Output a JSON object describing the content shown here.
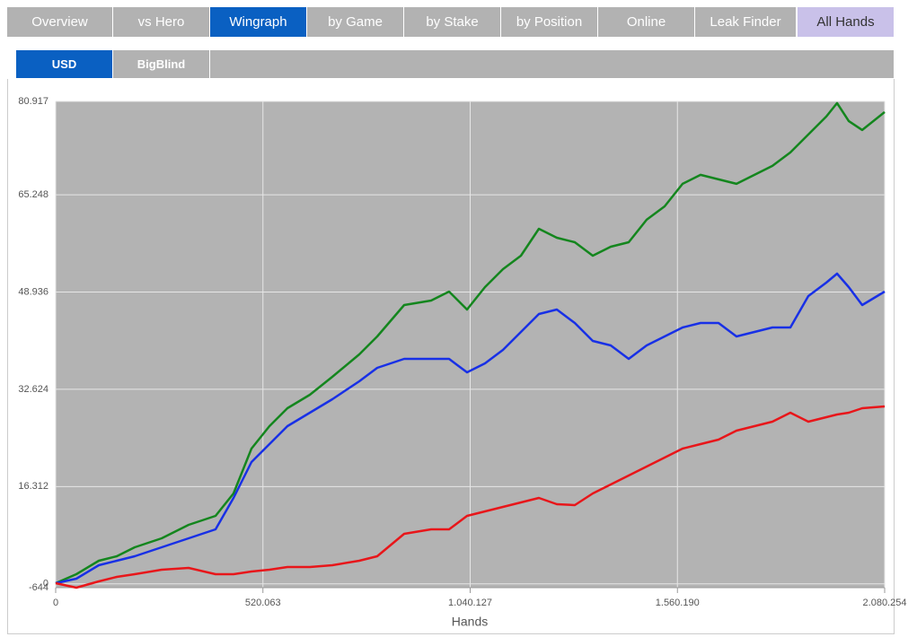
{
  "tabs": [
    "Overview",
    "vs Hero",
    "Wingraph",
    "by Game",
    "by Stake",
    "by Position",
    "Online",
    "Leak Finder",
    "All Hands"
  ],
  "subtabs": [
    "USD",
    "BigBlind"
  ],
  "chart_data": {
    "type": "line",
    "x_label": "Hands",
    "x": [
      0,
      51837,
      108182,
      153258,
      198334,
      265948,
      333561,
      401176,
      446252,
      491328,
      536404,
      581480,
      637825,
      694169,
      761784,
      806860,
      874474,
      942088,
      987164,
      1032240,
      1077316,
      1122392,
      1167468,
      1212544,
      1257620,
      1302696,
      1347772,
      1392848,
      1437924,
      1483000,
      1528076,
      1573152,
      1618228,
      1663304,
      1708380,
      1753456,
      1798532,
      1843608,
      1888684,
      1933760,
      1960805,
      1990104,
      2023911,
      2080254
    ],
    "series": [
      {
        "color": "#14861e",
        "values": [
          109,
          1614,
          3871,
          4624,
          6129,
          7634,
          9891,
          11396,
          15158,
          22683,
          26446,
          29456,
          31713,
          34723,
          38486,
          41496,
          46763,
          47516,
          49021,
          46011,
          49773,
          52783,
          55041,
          59556,
          58051,
          57298,
          55041,
          56546,
          57298,
          61061,
          63318,
          67081,
          68586,
          67833,
          67081,
          68586,
          70091,
          72348,
          75358,
          78368,
          80626,
          77616,
          76111,
          79121
        ]
      },
      {
        "color": "#1830e6",
        "values": [
          109,
          861,
          3119,
          3871,
          4624,
          6129,
          7634,
          9139,
          14406,
          20426,
          23436,
          26446,
          28703,
          30961,
          33971,
          36228,
          37733,
          37733,
          37733,
          35476,
          36981,
          39238,
          42248,
          45258,
          46011,
          43753,
          40743,
          39991,
          37733,
          39991,
          41496,
          43001,
          43753,
          43753,
          41496,
          42248,
          43001,
          43001,
          48268,
          50526,
          52031,
          49773,
          46763,
          49021
        ]
      },
      {
        "color": "#e8161a",
        "values": [
          109,
          -644,
          409,
          1162,
          1614,
          2366,
          2667,
          1614,
          1614,
          2065,
          2366,
          2817,
          2817,
          3119,
          3871,
          4624,
          8386,
          9139,
          9139,
          11396,
          12149,
          12901,
          13654,
          14406,
          13353,
          13203,
          15158,
          16663,
          18168,
          19673,
          21178,
          22683,
          23436,
          24188,
          25693,
          26446,
          27198,
          28703,
          27198,
          27951,
          28402,
          28703,
          29456,
          29757
        ]
      }
    ],
    "xlim": [
      0,
      2080254
    ],
    "ylim": [
      -644,
      80917
    ],
    "xticks": [
      0,
      {
        "value": 520063,
        "label": "520.063"
      },
      {
        "value": 1040127,
        "label": "1.040.127"
      },
      {
        "value": 1560190,
        "label": "1.560.190"
      },
      {
        "value": 2080254,
        "label": "2.080.254"
      }
    ],
    "yticks": [
      -644,
      0,
      {
        "value": 16312,
        "label": "16.312"
      },
      {
        "value": 32624,
        "label": "32.624"
      },
      {
        "value": 48936,
        "label": "48.936"
      },
      {
        "value": 65248,
        "label": "65.248"
      },
      {
        "value": 80917,
        "label": "80.917"
      }
    ],
    "grid": true
  }
}
